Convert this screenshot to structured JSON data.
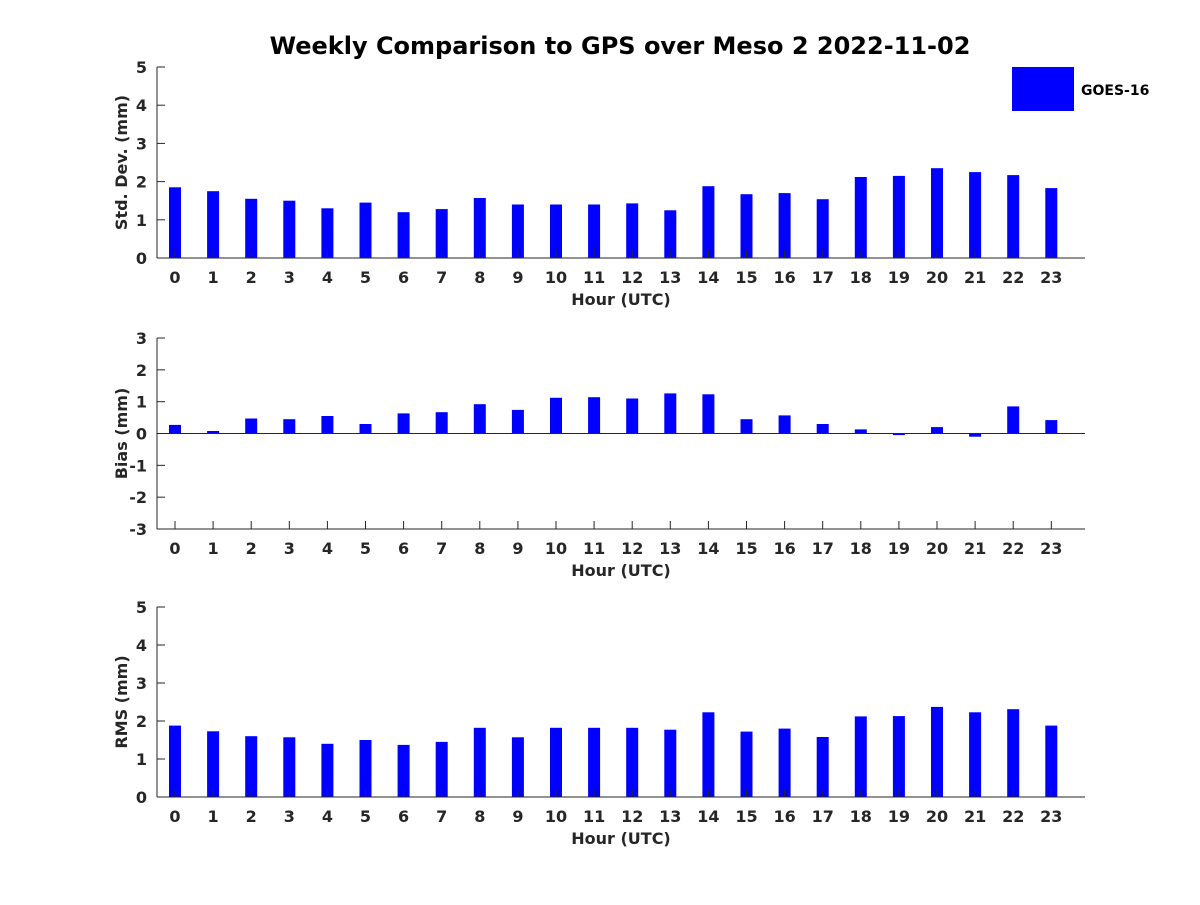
{
  "chart_data": {
    "title": "Weekly Comparison to GPS over Meso 2 2022-11-02",
    "legend": {
      "label": "GOES-16",
      "color": "#0000ff",
      "placement": "top-right"
    },
    "categories": [
      "0",
      "1",
      "2",
      "3",
      "4",
      "5",
      "6",
      "7",
      "8",
      "9",
      "10",
      "11",
      "12",
      "13",
      "14",
      "15",
      "16",
      "17",
      "18",
      "19",
      "20",
      "21",
      "22",
      "23"
    ],
    "panels": [
      {
        "type": "bar",
        "xlabel": "Hour (UTC)",
        "ylabel": "Std. Dev. (mm)",
        "ylim": [
          0,
          5
        ],
        "yticks": [
          "0",
          "1",
          "2",
          "3",
          "4",
          "5"
        ],
        "series": [
          {
            "name": "GOES-16",
            "values": [
              1.85,
              1.75,
              1.55,
              1.5,
              1.3,
              1.45,
              1.2,
              1.28,
              1.57,
              1.4,
              1.4,
              1.4,
              1.43,
              1.25,
              1.88,
              1.67,
              1.7,
              1.54,
              2.12,
              2.15,
              2.35,
              2.25,
              2.17,
              1.83
            ]
          }
        ]
      },
      {
        "type": "bar",
        "xlabel": "Hour (UTC)",
        "ylabel": "Bias (mm)",
        "ylim": [
          -3,
          3
        ],
        "yticks": [
          "-3",
          "-2",
          "-1",
          "0",
          "1",
          "2",
          "3"
        ],
        "series": [
          {
            "name": "GOES-16",
            "values": [
              0.27,
              0.08,
              0.47,
              0.45,
              0.55,
              0.3,
              0.63,
              0.67,
              0.92,
              0.74,
              1.12,
              1.14,
              1.1,
              1.26,
              1.23,
              0.45,
              0.57,
              0.3,
              0.13,
              -0.05,
              0.2,
              -0.1,
              0.85,
              0.42
            ]
          }
        ]
      },
      {
        "type": "bar",
        "xlabel": "Hour (UTC)",
        "ylabel": "RMS (mm)",
        "ylim": [
          0,
          5
        ],
        "yticks": [
          "0",
          "1",
          "2",
          "3",
          "4",
          "5"
        ],
        "series": [
          {
            "name": "GOES-16",
            "values": [
              1.88,
              1.73,
              1.6,
              1.57,
              1.4,
              1.5,
              1.37,
              1.45,
              1.82,
              1.57,
              1.82,
              1.82,
              1.82,
              1.77,
              2.23,
              1.72,
              1.8,
              1.58,
              2.12,
              2.13,
              2.37,
              2.23,
              2.31,
              1.88
            ]
          }
        ]
      }
    ]
  }
}
